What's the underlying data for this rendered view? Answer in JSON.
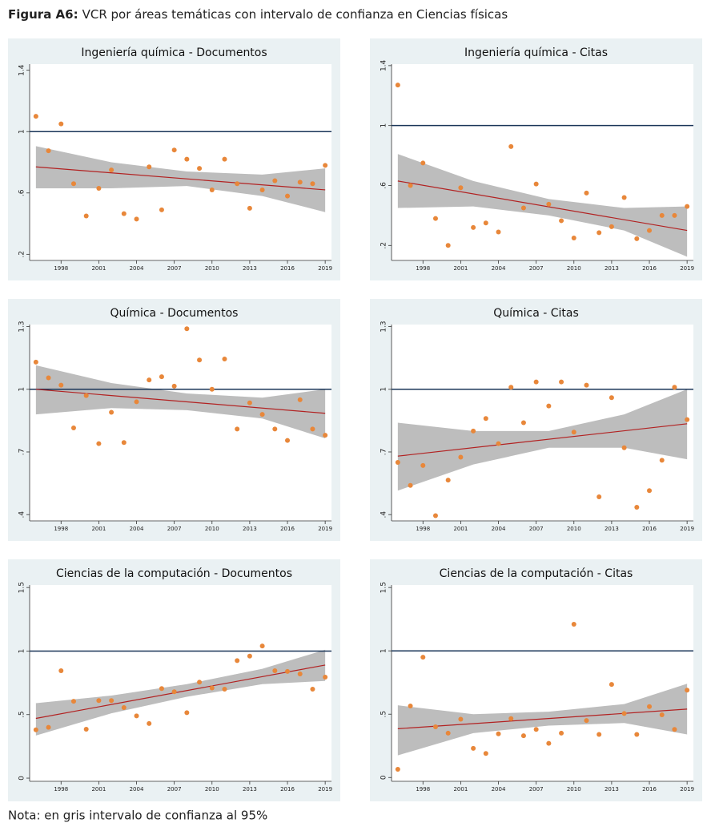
{
  "figure_label": "Figura A6:",
  "figure_title": "VCR por áreas temáticas con intervalo de confianza en Ciencias físicas",
  "note": "Nota: en gris intervalo de confianza al 95%",
  "chart_data": [
    {
      "type": "scatter",
      "title": "Ingeniería química - Documentos",
      "x": [
        1996,
        1997,
        1998,
        1999,
        2000,
        2001,
        2002,
        2003,
        2004,
        2005,
        2006,
        2007,
        2008,
        2009,
        2010,
        2011,
        2012,
        2013,
        2014,
        2015,
        2016,
        2017,
        2018,
        2019
      ],
      "values": [
        1.1,
        0.875,
        1.05,
        0.66,
        0.45,
        0.63,
        0.75,
        0.465,
        0.43,
        0.77,
        0.49,
        0.88,
        0.82,
        0.76,
        0.62,
        0.82,
        0.66,
        0.5,
        0.62,
        0.68,
        0.58,
        0.67,
        0.66,
        0.78
      ],
      "color": "#e8873a",
      "fit_x": [
        1996,
        2019
      ],
      "fit_values": [
        0.77,
        0.62
      ],
      "fit_color": "#b22222",
      "band_x": [
        1996,
        2002,
        2008,
        2014,
        2019
      ],
      "band_upper": [
        0.905,
        0.8,
        0.74,
        0.72,
        0.76
      ],
      "band_lower": [
        0.63,
        0.63,
        0.645,
        0.58,
        0.475
      ],
      "band_color": "#bdbdbd",
      "reference_line": 1,
      "reference_color": "#1a3558",
      "xlim": [
        1995.5,
        2019.5
      ],
      "xticks": [
        1998,
        2001,
        2004,
        2007,
        2010,
        2013,
        2016,
        2019
      ],
      "ylim": [
        0.16,
        1.44
      ],
      "yticks": [
        {
          "value": 0.2,
          "label": ".2"
        },
        {
          "value": 0.6,
          "label": ".6"
        },
        1,
        1.4
      ]
    },
    {
      "type": "scatter",
      "title": "Ingeniería química - Citas",
      "x": [
        1996,
        1997,
        1998,
        1999,
        2000,
        2001,
        2002,
        2003,
        2004,
        2005,
        2006,
        2007,
        2008,
        2009,
        2010,
        2011,
        2012,
        2013,
        2014,
        2015,
        2016,
        2017,
        2018,
        2019
      ],
      "values": [
        1.27,
        0.6,
        0.75,
        0.38,
        0.2,
        0.585,
        0.32,
        0.35,
        0.29,
        0.86,
        0.45,
        0.61,
        0.475,
        0.365,
        0.25,
        0.55,
        0.285,
        0.325,
        0.52,
        0.245,
        0.3,
        0.4,
        0.4,
        0.46
      ],
      "color": "#e8873a",
      "fit_x": [
        1996,
        2019
      ],
      "fit_values": [
        0.63,
        0.3
      ],
      "fit_color": "#b22222",
      "band_x": [
        1996,
        2002,
        2008,
        2014,
        2019
      ],
      "band_upper": [
        0.81,
        0.63,
        0.51,
        0.45,
        0.46
      ],
      "band_lower": [
        0.45,
        0.46,
        0.4,
        0.3,
        0.125
      ],
      "band_color": "#bdbdbd",
      "reference_line": 1,
      "reference_color": "#1a3558",
      "xlim": [
        1995.5,
        2019.5
      ],
      "xticks": [
        1998,
        2001,
        2004,
        2007,
        2010,
        2013,
        2016,
        2019
      ],
      "ylim": [
        0.1,
        1.41
      ],
      "yticks": [
        {
          "value": 0.2,
          "label": ".2"
        },
        {
          "value": 0.6,
          "label": ".6"
        },
        1,
        1.4
      ]
    },
    {
      "type": "scatter",
      "title": "Química - Documentos",
      "x": [
        1996,
        1997,
        1998,
        1999,
        2000,
        2001,
        2002,
        2003,
        2004,
        2005,
        2006,
        2007,
        2008,
        2009,
        2010,
        2011,
        2012,
        2013,
        2014,
        2015,
        2016,
        2017,
        2018,
        2019
      ],
      "values": [
        1.13,
        1.055,
        1.02,
        0.815,
        0.97,
        0.74,
        0.89,
        0.745,
        0.94,
        1.045,
        1.06,
        1.015,
        1.29,
        1.14,
        1.0,
        1.145,
        0.81,
        0.935,
        0.88,
        0.81,
        0.755,
        0.95,
        0.81,
        0.78
      ],
      "color": "#e8873a",
      "fit_x": [
        1996,
        2019
      ],
      "fit_values": [
        1.0,
        0.885
      ],
      "fit_color": "#b22222",
      "band_x": [
        1996,
        2002,
        2008,
        2014,
        2019
      ],
      "band_upper": [
        1.115,
        1.03,
        0.98,
        0.96,
        1.0
      ],
      "band_lower": [
        0.88,
        0.91,
        0.9,
        0.86,
        0.765
      ],
      "band_color": "#bdbdbd",
      "reference_line": 1,
      "reference_color": "#1a3558",
      "xlim": [
        1995.5,
        2019.5
      ],
      "xticks": [
        1998,
        2001,
        2004,
        2007,
        2010,
        2013,
        2016,
        2019
      ],
      "ylim": [
        0.37,
        1.31
      ],
      "yticks": [
        {
          "value": 0.4,
          "label": ".4"
        },
        {
          "value": 0.7,
          "label": ".7"
        },
        1,
        1.3
      ]
    },
    {
      "type": "scatter",
      "title": "Química - Citas",
      "x": [
        1996,
        1997,
        1998,
        1999,
        2000,
        2001,
        2002,
        2003,
        2004,
        2005,
        2006,
        2007,
        2008,
        2009,
        2010,
        2011,
        2012,
        2013,
        2014,
        2015,
        2016,
        2017,
        2018,
        2019
      ],
      "values": [
        0.65,
        0.54,
        0.635,
        0.395,
        0.565,
        0.675,
        0.8,
        0.86,
        0.74,
        1.01,
        0.84,
        1.035,
        0.92,
        1.035,
        0.795,
        1.02,
        0.485,
        0.96,
        0.72,
        0.435,
        0.515,
        0.66,
        1.01,
        0.855
      ],
      "color": "#e8873a",
      "fit_x": [
        1996,
        2019
      ],
      "fit_values": [
        0.68,
        0.835
      ],
      "fit_color": "#b22222",
      "band_x": [
        1996,
        2002,
        2008,
        2014,
        2019
      ],
      "band_upper": [
        0.84,
        0.8,
        0.8,
        0.88,
        1.0
      ],
      "band_lower": [
        0.515,
        0.64,
        0.72,
        0.72,
        0.665
      ],
      "band_color": "#bdbdbd",
      "reference_line": 1,
      "reference_color": "#1a3558",
      "xlim": [
        1995.5,
        2019.5
      ],
      "xticks": [
        1998,
        2001,
        2004,
        2007,
        2010,
        2013,
        2016,
        2019
      ],
      "ylim": [
        0.37,
        1.31
      ],
      "yticks": [
        {
          "value": 0.4,
          "label": ".4"
        },
        {
          "value": 0.7,
          "label": ".7"
        },
        1,
        1.3
      ]
    },
    {
      "type": "scatter",
      "title": "Ciencias de la computación - Documentos",
      "x": [
        1996,
        1997,
        1998,
        1999,
        2000,
        2001,
        2002,
        2003,
        2004,
        2005,
        2006,
        2007,
        2008,
        2009,
        2010,
        2011,
        2012,
        2013,
        2014,
        2015,
        2016,
        2017,
        2018,
        2019
      ],
      "values": [
        0.38,
        0.4,
        0.845,
        0.605,
        0.385,
        0.61,
        0.61,
        0.555,
        0.49,
        0.43,
        0.705,
        0.68,
        0.515,
        0.755,
        0.71,
        0.7,
        0.925,
        0.96,
        1.04,
        0.845,
        0.84,
        0.82,
        0.7,
        0.795
      ],
      "color": "#e8873a",
      "fit_x": [
        1996,
        2019
      ],
      "fit_values": [
        0.47,
        0.89
      ],
      "fit_color": "#b22222",
      "band_x": [
        1996,
        2002,
        2008,
        2014,
        2019
      ],
      "band_upper": [
        0.59,
        0.65,
        0.74,
        0.86,
        1.01
      ],
      "band_lower": [
        0.335,
        0.51,
        0.64,
        0.74,
        0.765
      ],
      "band_color": "#bdbdbd",
      "reference_line": 1,
      "reference_color": "#1a3558",
      "xlim": [
        1995.5,
        2019.5
      ],
      "xticks": [
        1998,
        2001,
        2004,
        2007,
        2010,
        2013,
        2016,
        2019
      ],
      "ylim": [
        -0.025,
        1.52
      ],
      "yticks": [
        0,
        {
          "value": 0.5,
          "label": ".5"
        },
        1,
        1.5
      ]
    },
    {
      "type": "scatter",
      "title": "Ciencias de la computación - Citas",
      "x": [
        1996,
        1997,
        1998,
        1999,
        2000,
        2001,
        2002,
        2003,
        2004,
        2005,
        2006,
        2007,
        2008,
        2009,
        2010,
        2011,
        2012,
        2013,
        2014,
        2015,
        2016,
        2017,
        2018,
        2019
      ],
      "values": [
        0.065,
        0.565,
        0.95,
        0.4,
        0.35,
        0.46,
        0.23,
        0.19,
        0.345,
        0.465,
        0.33,
        0.38,
        0.27,
        0.35,
        1.21,
        0.45,
        0.34,
        0.735,
        0.505,
        0.34,
        0.56,
        0.495,
        0.38,
        0.69
      ],
      "color": "#e8873a",
      "fit_x": [
        1996,
        2019
      ],
      "fit_values": [
        0.385,
        0.54
      ],
      "fit_color": "#b22222",
      "band_x": [
        1996,
        2002,
        2008,
        2014,
        2019
      ],
      "band_upper": [
        0.57,
        0.5,
        0.52,
        0.58,
        0.74
      ],
      "band_lower": [
        0.175,
        0.35,
        0.41,
        0.43,
        0.34
      ],
      "band_color": "#bdbdbd",
      "reference_line": 1,
      "reference_color": "#1a3558",
      "xlim": [
        1995.5,
        2019.5
      ],
      "xticks": [
        1998,
        2001,
        2004,
        2007,
        2010,
        2013,
        2016,
        2019
      ],
      "ylim": [
        -0.03,
        1.52
      ],
      "yticks": [
        0,
        {
          "value": 0.5,
          "label": ".5"
        },
        1,
        1.5
      ]
    }
  ]
}
